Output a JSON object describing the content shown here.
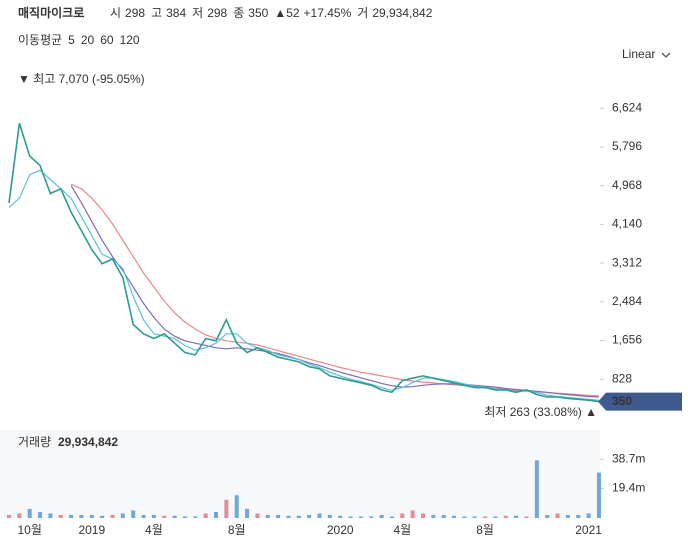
{
  "header": {
    "name": "매직마이크로",
    "quotes": [
      {
        "label": "시",
        "value": "298"
      },
      {
        "label": "고",
        "value": "384"
      },
      {
        "label": "저",
        "value": "298"
      },
      {
        "label": "종",
        "value": "350"
      }
    ],
    "change": "▲52",
    "change_pct": "+17.45%",
    "volume_label": "거",
    "volume": "29,934,842",
    "ma_label": "이동평균",
    "scale": "Linear"
  },
  "chart_data": [
    {
      "type": "line",
      "categories": [
        null,
        null,
        "10월",
        null,
        null,
        null,
        null,
        null,
        "2019",
        null,
        null,
        null,
        null,
        null,
        "4월",
        null,
        null,
        null,
        null,
        null,
        null,
        null,
        "8월",
        null,
        null,
        null,
        null,
        null,
        null,
        null,
        null,
        null,
        "2020",
        null,
        null,
        null,
        null,
        null,
        "4월",
        null,
        null,
        null,
        null,
        null,
        null,
        null,
        "8월",
        null,
        null,
        null,
        null,
        null,
        null,
        null,
        null,
        null,
        "2021",
        null
      ],
      "series": [
        {
          "name": "5",
          "color": "#2a9d8f",
          "values": [
            4600,
            6300,
            5600,
            5400,
            4800,
            4900,
            4400,
            4000,
            3600,
            3300,
            3400,
            3000,
            2000,
            1800,
            1700,
            1800,
            1600,
            1400,
            1350,
            1700,
            1650,
            2100,
            1600,
            1400,
            1500,
            1400,
            1300,
            1250,
            1200,
            1100,
            1050,
            900,
            850,
            800,
            750,
            700,
            600,
            550,
            800,
            850,
            900,
            850,
            800,
            750,
            700,
            650,
            650,
            600,
            600,
            550,
            600,
            500,
            450,
            450,
            420,
            400,
            380,
            350
          ]
        },
        {
          "name": "20",
          "color": "#5bc0de",
          "values": [
            4500,
            4700,
            5200,
            5300,
            5100,
            4900,
            4700,
            4300,
            3900,
            3500,
            3400,
            3200,
            2600,
            2100,
            1800,
            1750,
            1700,
            1550,
            1450,
            1500,
            1600,
            1800,
            1800,
            1600,
            1500,
            1450,
            1350,
            1300,
            1250,
            1150,
            1080,
            980,
            900,
            830,
            780,
            720,
            650,
            590,
            650,
            760,
            850,
            860,
            820,
            780,
            730,
            680,
            660,
            620,
            600,
            570,
            580,
            540,
            490,
            460,
            440,
            420,
            400,
            380
          ]
        },
        {
          "name": "60",
          "color": "#7b6cb8",
          "values": [
            null,
            null,
            null,
            null,
            null,
            null,
            4968,
            4600,
            4200,
            3800,
            3450,
            3150,
            2800,
            2450,
            2150,
            1900,
            1750,
            1650,
            1600,
            1550,
            1500,
            1480,
            1500,
            1480,
            1450,
            1420,
            1380,
            1320,
            1250,
            1180,
            1120,
            1050,
            980,
            920,
            860,
            800,
            740,
            690,
            660,
            670,
            700,
            720,
            730,
            730,
            720,
            700,
            680,
            660,
            630,
            610,
            590,
            570,
            550,
            520,
            500,
            480,
            460,
            450
          ]
        },
        {
          "name": "120",
          "color": "#e8888f",
          "values": [
            null,
            null,
            null,
            null,
            null,
            null,
            5000,
            4900,
            4700,
            4450,
            4150,
            3800,
            3450,
            3100,
            2800,
            2500,
            2250,
            2050,
            1900,
            1780,
            1700,
            1650,
            1620,
            1600,
            1560,
            1500,
            1440,
            1380,
            1320,
            1260,
            1200,
            1140,
            1080,
            1030,
            980,
            940,
            900,
            860,
            820,
            790,
            770,
            750,
            730,
            710,
            690,
            670,
            650,
            630,
            610,
            590,
            575,
            560,
            545,
            530,
            515,
            500,
            485,
            470
          ]
        }
      ],
      "ylim": [
        0,
        7120
      ],
      "yticks": [
        {
          "value": 828,
          "label": "828"
        },
        {
          "value": 1656,
          "label": "1,656"
        },
        {
          "value": 2484,
          "label": "2,484"
        },
        {
          "value": 3312,
          "label": "3,312"
        },
        {
          "value": 4140,
          "label": "4,140"
        },
        {
          "value": 4968,
          "label": "4,968"
        },
        {
          "value": 5796,
          "label": "5,796"
        },
        {
          "value": 6624,
          "label": "6,624"
        }
      ],
      "high_note": "▼ 최고 7,070 (-95.05%)",
      "low_note": "최저 263 (33.08%) ▲",
      "last_price": 350,
      "last_color": "#3f5a8f"
    },
    {
      "type": "bar",
      "title": "거래량",
      "total": "29,934,842",
      "up_color": "#e58b95",
      "down_color": "#6fa7d8",
      "values": [
        2,
        3,
        6,
        4,
        3,
        2,
        2,
        2,
        2,
        1.5,
        2,
        3,
        5,
        2,
        2,
        1.5,
        1.5,
        1,
        1,
        3,
        4,
        12,
        15,
        6,
        3,
        2,
        2,
        1.5,
        1.5,
        2,
        3,
        2,
        1.5,
        1,
        1,
        1,
        2,
        1,
        3,
        5,
        3,
        2,
        2,
        1.5,
        1,
        1,
        1,
        1,
        1.5,
        1.5,
        1,
        38,
        2,
        3,
        2,
        2,
        3,
        29.9
      ],
      "ylim": [
        0,
        58
      ],
      "yticks": [
        {
          "value": 19.4,
          "label": "19.4m"
        },
        {
          "value": 38.7,
          "label": "38.7m"
        }
      ]
    }
  ]
}
